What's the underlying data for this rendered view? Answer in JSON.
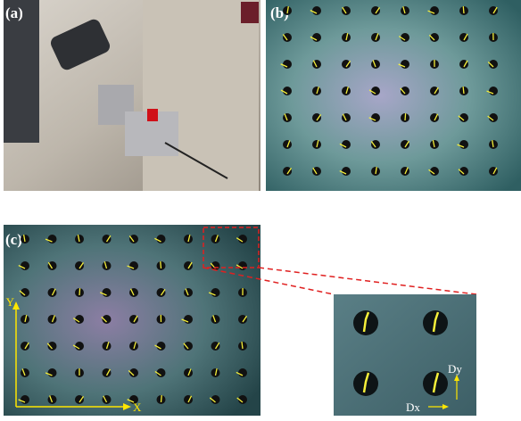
{
  "panels": [
    {
      "label": "(a)"
    },
    {
      "label": "(b)"
    },
    {
      "label": "(c)"
    }
  ],
  "axes": {
    "y": "Y",
    "x": "X"
  },
  "inset": {
    "dx": "Dx",
    "dy": "Dy"
  }
}
